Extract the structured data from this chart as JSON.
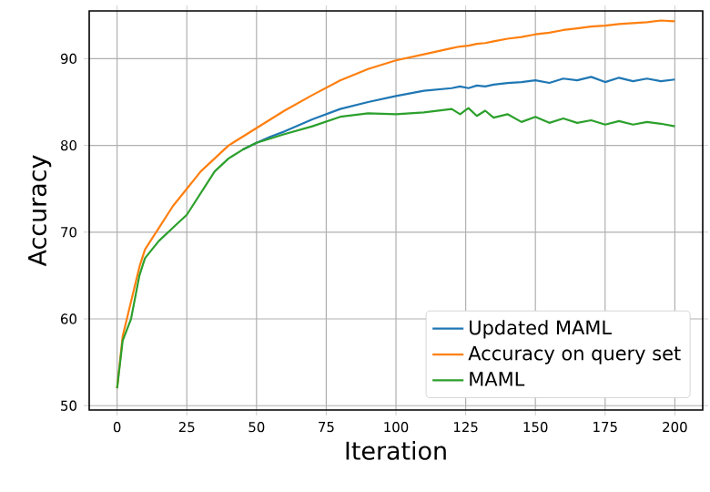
{
  "chart_data": {
    "type": "line",
    "xlabel": "Iteration",
    "ylabel": "Accuracy",
    "x": [
      0,
      2,
      5,
      8,
      10,
      15,
      20,
      25,
      30,
      35,
      40,
      45,
      50,
      55,
      60,
      70,
      80,
      90,
      100,
      110,
      120,
      123,
      126,
      129,
      132,
      135,
      140,
      145,
      150,
      155,
      160,
      165,
      170,
      175,
      180,
      185,
      190,
      195,
      200
    ],
    "series": [
      {
        "name": "Updated MAML",
        "color": "#1f77b4",
        "values": [
          null,
          null,
          null,
          null,
          null,
          null,
          null,
          null,
          null,
          null,
          null,
          79.5,
          80.3,
          81,
          81.6,
          83,
          84.2,
          85,
          85.7,
          86.3,
          86.6,
          86.8,
          86.6,
          86.9,
          86.8,
          87,
          87.2,
          87.3,
          87.5,
          87.2,
          87.7,
          87.5,
          87.9,
          87.3,
          87.8,
          87.4,
          87.7,
          87.4,
          87.6
        ]
      },
      {
        "name": "Accuracy on query set",
        "color": "#ff7f0e",
        "values": [
          52,
          58,
          62,
          66,
          68,
          70.5,
          73,
          75,
          77,
          78.5,
          80,
          81,
          82,
          83,
          84,
          85.8,
          87.5,
          88.8,
          89.8,
          90.5,
          91.2,
          91.4,
          91.5,
          91.7,
          91.8,
          92,
          92.3,
          92.5,
          92.8,
          93,
          93.3,
          93.5,
          93.7,
          93.8,
          94,
          94.1,
          94.2,
          94.4,
          94.3
        ]
      },
      {
        "name": "MAML",
        "color": "#2ca02c",
        "values": [
          52,
          57.5,
          60,
          65,
          67,
          69,
          70.5,
          72,
          74.5,
          77,
          78.5,
          79.5,
          80.3,
          80.8,
          81.3,
          82.2,
          83.3,
          83.7,
          83.6,
          83.8,
          84.2,
          83.6,
          84.3,
          83.4,
          84,
          83.2,
          83.6,
          82.7,
          83.3,
          82.6,
          83.1,
          82.6,
          82.9,
          82.4,
          82.8,
          82.4,
          82.7,
          82.5,
          82.2
        ]
      }
    ],
    "xlim": [
      -10,
      210
    ],
    "ylim": [
      49.5,
      95.5
    ],
    "xticks": [
      0,
      25,
      50,
      75,
      100,
      125,
      150,
      175,
      200
    ],
    "yticks": [
      50,
      60,
      70,
      80,
      90
    ],
    "grid": true,
    "legend": "bottom right",
    "marker": "none",
    "line_style": "solid"
  }
}
